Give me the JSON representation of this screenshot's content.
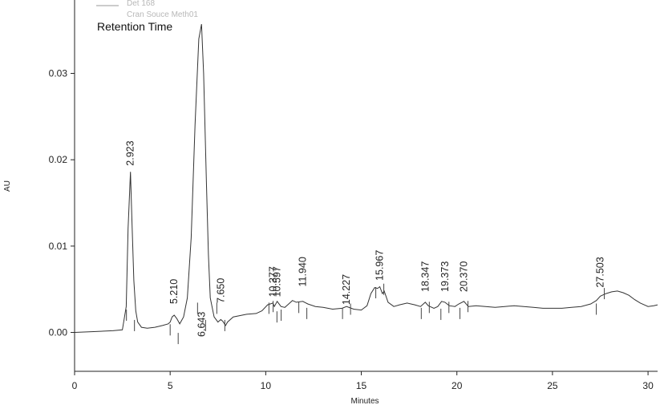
{
  "chart_data": {
    "type": "line",
    "legend": {
      "title": "Retention Time",
      "entries": [
        "Det 168",
        "Cran Souce Meth01"
      ]
    },
    "xlabel": "Minutes",
    "ylabel": "AU",
    "xlim": [
      0,
      30.5
    ],
    "ylim": [
      -0.0045,
      0.0385
    ],
    "x_ticks": [
      0,
      5,
      10,
      15,
      20,
      25,
      30
    ],
    "y_ticks": [
      0.0,
      0.01,
      0.02,
      0.03
    ],
    "y_tick_labels": [
      "0.00",
      "0.01",
      "0.02",
      "0.03"
    ],
    "grid": false,
    "series": [
      {
        "name": "Det 168",
        "x": [
          0,
          1,
          2,
          2.5,
          2.7,
          2.8,
          2.923,
          3.0,
          3.1,
          3.2,
          3.3,
          3.5,
          3.8,
          4.2,
          4.6,
          4.9,
          5.0,
          5.1,
          5.21,
          5.35,
          5.5,
          5.7,
          5.9,
          6.1,
          6.3,
          6.5,
          6.643,
          6.75,
          6.9,
          7.0,
          7.1,
          7.3,
          7.5,
          7.65,
          7.75,
          7.9,
          8.0,
          8.3,
          9.0,
          9.5,
          9.8,
          10.1,
          10.377,
          10.45,
          10.597,
          10.8,
          11.0,
          11.2,
          11.4,
          11.6,
          11.94,
          12.2,
          12.6,
          13.0,
          13.5,
          14.0,
          14.227,
          14.6,
          15.0,
          15.3,
          15.5,
          15.7,
          15.85,
          15.967,
          16.1,
          16.2,
          16.4,
          16.7,
          17.0,
          17.4,
          17.8,
          18.1,
          18.347,
          18.5,
          18.8,
          19.0,
          19.2,
          19.373,
          19.6,
          19.9,
          20.1,
          20.37,
          20.6,
          21.0,
          21.5,
          22.0,
          22.5,
          23.0,
          23.5,
          24.0,
          24.5,
          25.0,
          25.5,
          26.0,
          26.5,
          27.0,
          27.3,
          27.503,
          27.8,
          28.1,
          28.4,
          28.7,
          29.0,
          29.3,
          29.6,
          30.0,
          30.3,
          30.5
        ],
        "y": [
          0.0,
          0.0001,
          0.0002,
          0.0003,
          0.003,
          0.012,
          0.0186,
          0.013,
          0.006,
          0.0025,
          0.0012,
          0.0006,
          0.0005,
          0.0006,
          0.0008,
          0.001,
          0.0012,
          0.0018,
          0.002,
          0.0016,
          0.001,
          0.0018,
          0.004,
          0.011,
          0.024,
          0.034,
          0.0357,
          0.03,
          0.017,
          0.009,
          0.004,
          0.0018,
          0.0012,
          0.0015,
          0.0013,
          0.0008,
          0.0012,
          0.0018,
          0.0021,
          0.0022,
          0.0025,
          0.0032,
          0.0034,
          0.003,
          0.0036,
          0.003,
          0.0029,
          0.0033,
          0.0037,
          0.0035,
          0.0036,
          0.0033,
          0.003,
          0.0029,
          0.0027,
          0.0028,
          0.003,
          0.0027,
          0.0026,
          0.0031,
          0.0045,
          0.0052,
          0.0051,
          0.0053,
          0.0045,
          0.0048,
          0.0035,
          0.003,
          0.0032,
          0.0034,
          0.0032,
          0.003,
          0.0035,
          0.0031,
          0.0028,
          0.003,
          0.0036,
          0.0035,
          0.0031,
          0.003,
          0.0033,
          0.0036,
          0.003,
          0.0031,
          0.003,
          0.0029,
          0.003,
          0.0031,
          0.003,
          0.0029,
          0.0028,
          0.0028,
          0.0028,
          0.0029,
          0.003,
          0.0033,
          0.0037,
          0.0042,
          0.0045,
          0.0047,
          0.0048,
          0.0046,
          0.0043,
          0.0038,
          0.0034,
          0.003,
          0.0031,
          0.0032
        ]
      }
    ],
    "peak_labels": [
      {
        "text": "2.923",
        "x": 2.923,
        "y": 0.0193,
        "tick_ys": [
          0.002,
          0.0008
        ]
      },
      {
        "text": "5.210",
        "x": 5.21,
        "y": 0.0033,
        "tick_ys": [
          0.0003,
          -0.0007
        ]
      },
      {
        "text": "6.643",
        "x": 6.643,
        "y": -0.0005,
        "tick_ys": [
          0.0028,
          0.0008
        ]
      },
      {
        "text": "7.650",
        "x": 7.65,
        "y": 0.0034,
        "tick_ys": [
          0.0028,
          0.0008
        ]
      },
      {
        "text": "10.377",
        "x": 10.377,
        "y": 0.0041,
        "tick_ys": [
          0.0028,
          0.0018
        ]
      },
      {
        "text": "10.597",
        "x": 10.597,
        "y": 0.0041,
        "tick_ys": [
          0.003,
          0.002
        ]
      },
      {
        "text": "11.940",
        "x": 11.94,
        "y": 0.0053,
        "tick_ys": [
          0.0029,
          0.0022
        ]
      },
      {
        "text": "14.227",
        "x": 14.227,
        "y": 0.0032,
        "tick_ys": [
          0.0022,
          0.0027
        ]
      },
      {
        "text": "15.967",
        "x": 15.967,
        "y": 0.006,
        "tick_ys": [
          0.0046,
          0.005
        ]
      },
      {
        "text": "18.347",
        "x": 18.347,
        "y": 0.0047,
        "tick_ys": [
          0.0022,
          0.0029
        ]
      },
      {
        "text": "19.373",
        "x": 19.373,
        "y": 0.0047,
        "tick_ys": [
          0.0021,
          0.0029
        ]
      },
      {
        "text": "20.370",
        "x": 20.37,
        "y": 0.0047,
        "tick_ys": [
          0.0022,
          0.003
        ]
      },
      {
        "text": "27.503",
        "x": 27.503,
        "y": 0.0052,
        "tick_ys": [
          0.0027,
          0.0045
        ]
      }
    ]
  }
}
